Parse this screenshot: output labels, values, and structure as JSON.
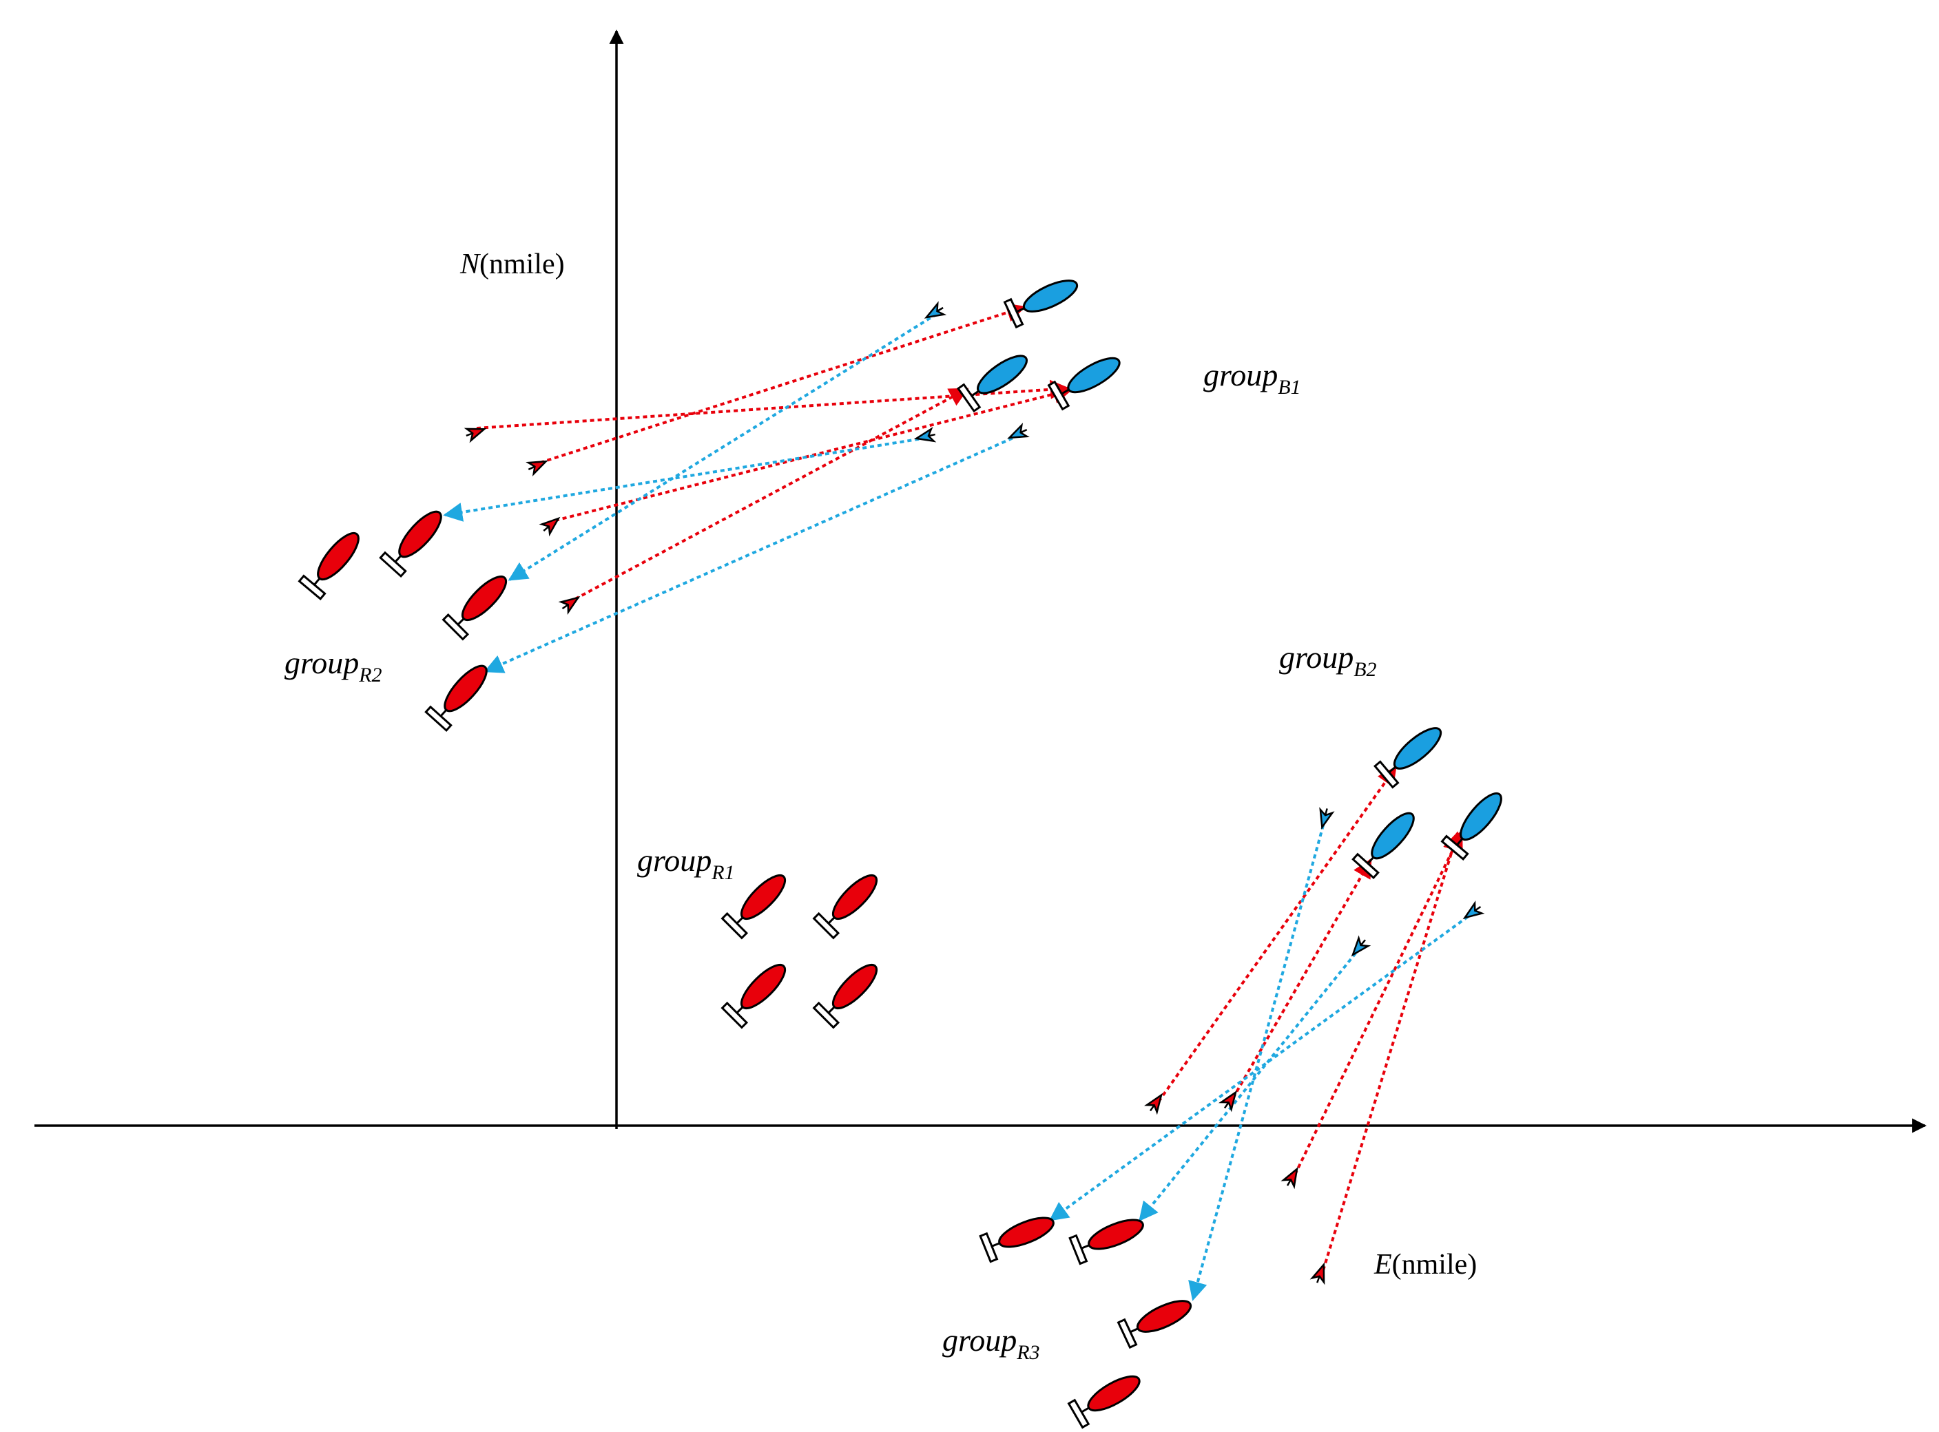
{
  "colors": {
    "red_ship": "#e8000b",
    "blue_ship": "#1a9fe0",
    "red_track": "#e8000b",
    "blue_track": "#1fa8e0",
    "axis": "#000000",
    "hull_outline": "#000000",
    "stern": "#ffffff"
  },
  "axes": {
    "north": {
      "label": "N",
      "unit": "(nmile)"
    },
    "east": {
      "label": "E",
      "unit": "(nmile)"
    }
  },
  "groups": [
    {
      "id": "B1",
      "base": "group",
      "sub": "B1",
      "side": "blue"
    },
    {
      "id": "B2",
      "base": "group",
      "sub": "B2",
      "side": "blue"
    },
    {
      "id": "R1",
      "base": "group",
      "sub": "R1",
      "side": "red"
    },
    {
      "id": "R2",
      "base": "group",
      "sub": "R2",
      "side": "red"
    },
    {
      "id": "R3",
      "base": "group",
      "sub": "R3",
      "side": "red"
    }
  ],
  "icons": {
    "ship": "ship-icon",
    "missile": "missile-icon"
  }
}
